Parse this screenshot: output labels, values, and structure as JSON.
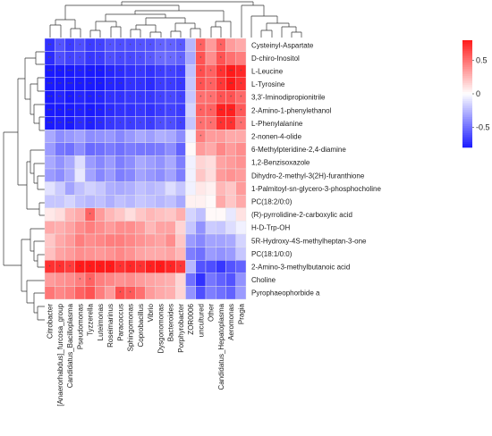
{
  "chart_data": {
    "type": "heatmap",
    "title": "",
    "xlabel": "",
    "ylabel": "",
    "rows": [
      "Cysteinyl-Aspartate",
      "D-chiro-Inositol",
      "L-Leucine",
      "L-Tyrosine",
      "3,3'-Iminodipropionitrile",
      "2-Amino-1-phenylethanol",
      "L-Phenylalanine",
      "2-nonen-4-olide",
      "6-Methylpteridine-2,4-diamine",
      "1,2-Benzisoxazole",
      "Dihydro-2-methyl-3(2H)-furanthione",
      "1-Palmitoyl-sn-glycero-3-phosphocholine",
      "PC(18:2/0:0)",
      "(R)-pyrrolidine-2-carboxylic acid",
      "H-D-Trp-OH",
      "5R-Hydroxy-4S-methylheptan-3-one",
      "PC(18:1/0:0)",
      "2-Amino-3-methylbutanoic acid",
      "Choline",
      "Pyrophaeophorbide a"
    ],
    "columns": [
      "Citrobacter",
      "[Anaerorhabdus]_furcosa_group",
      "Candidatus_Bacilloplasma",
      "Pseudomonas",
      "Tyzzerella",
      "Luteimonas",
      "Roseimarinus",
      "Paracoccus",
      "Sphingomonas",
      "Coprobacillus",
      "Vibrio",
      "Dysgonomonas",
      "Bacteroides",
      "Porphyrobacter",
      "ZOR0006",
      "uncultured",
      "Other",
      "Candidatus_Hepatoplasma",
      "Aeromonas",
      "Pragia"
    ],
    "values": [
      [
        -0.72,
        -0.6,
        -0.68,
        -0.62,
        -0.68,
        -0.66,
        -0.6,
        -0.62,
        -0.62,
        -0.6,
        -0.6,
        -0.55,
        -0.55,
        -0.58,
        -0.25,
        0.55,
        0.35,
        0.55,
        0.35,
        0.3
      ],
      [
        -0.74,
        -0.62,
        -0.66,
        -0.64,
        -0.7,
        -0.68,
        -0.62,
        -0.64,
        -0.64,
        -0.62,
        -0.58,
        -0.52,
        -0.52,
        -0.55,
        -0.3,
        0.6,
        0.4,
        0.6,
        0.5,
        0.45
      ],
      [
        -0.88,
        -0.82,
        -0.86,
        -0.78,
        -0.82,
        -0.8,
        -0.76,
        -0.74,
        -0.72,
        -0.7,
        -0.72,
        -0.68,
        -0.66,
        -0.68,
        -0.22,
        0.62,
        0.55,
        0.72,
        0.85,
        0.75
      ],
      [
        -0.88,
        -0.84,
        -0.86,
        -0.8,
        -0.84,
        -0.82,
        -0.76,
        -0.76,
        -0.72,
        -0.72,
        -0.74,
        -0.68,
        -0.68,
        -0.7,
        -0.2,
        0.6,
        0.55,
        0.7,
        0.82,
        0.72
      ],
      [
        -0.8,
        -0.76,
        -0.8,
        -0.76,
        -0.78,
        -0.76,
        -0.72,
        -0.72,
        -0.7,
        -0.7,
        -0.7,
        -0.66,
        -0.64,
        -0.66,
        -0.2,
        0.5,
        0.5,
        0.6,
        0.6,
        0.52
      ],
      [
        -0.86,
        -0.8,
        -0.84,
        -0.78,
        -0.8,
        -0.78,
        -0.74,
        -0.72,
        -0.72,
        -0.7,
        -0.72,
        -0.68,
        -0.66,
        -0.68,
        -0.15,
        0.55,
        0.55,
        0.78,
        0.78,
        0.58
      ],
      [
        -0.84,
        -0.78,
        -0.8,
        -0.74,
        -0.78,
        -0.74,
        -0.7,
        -0.68,
        -0.68,
        -0.66,
        -0.68,
        -0.62,
        -0.62,
        -0.66,
        -0.2,
        0.5,
        0.5,
        0.72,
        0.72,
        0.5
      ],
      [
        -0.3,
        -0.4,
        -0.36,
        -0.32,
        -0.4,
        -0.38,
        -0.36,
        -0.42,
        -0.36,
        -0.3,
        -0.34,
        -0.28,
        -0.3,
        -0.4,
        -0.05,
        0.45,
        0.35,
        0.35,
        0.3,
        0.3
      ],
      [
        -0.35,
        -0.48,
        -0.5,
        -0.4,
        -0.52,
        -0.5,
        -0.46,
        -0.5,
        -0.46,
        -0.48,
        -0.48,
        -0.46,
        -0.4,
        -0.55,
        0.02,
        0.35,
        0.3,
        0.42,
        0.35,
        0.4
      ],
      [
        -0.3,
        -0.38,
        -0.3,
        -0.12,
        -0.35,
        -0.42,
        -0.35,
        -0.45,
        -0.4,
        -0.3,
        -0.34,
        -0.38,
        -0.3,
        -0.45,
        -0.05,
        0.15,
        0.12,
        0.32,
        0.35,
        0.38
      ],
      [
        -0.35,
        -0.4,
        -0.3,
        -0.08,
        -0.32,
        -0.42,
        -0.35,
        -0.45,
        -0.42,
        -0.32,
        -0.36,
        -0.4,
        -0.32,
        -0.45,
        -0.05,
        0.2,
        0.12,
        0.35,
        0.38,
        0.35
      ],
      [
        -0.1,
        -0.18,
        -0.32,
        -0.22,
        -0.16,
        -0.2,
        -0.28,
        -0.3,
        -0.28,
        -0.22,
        -0.25,
        -0.22,
        -0.12,
        -0.2,
        -0.05,
        0.08,
        0.05,
        0.25,
        0.2,
        0.35
      ],
      [
        -0.2,
        -0.2,
        -0.15,
        -0.22,
        -0.25,
        -0.22,
        -0.28,
        -0.22,
        -0.25,
        -0.2,
        -0.22,
        -0.25,
        -0.22,
        -0.3,
        0.05,
        0.05,
        0.02,
        0.3,
        0.2,
        0.3
      ],
      [
        0.08,
        0.12,
        0.25,
        0.3,
        0.55,
        0.35,
        0.25,
        0.2,
        0.12,
        0.2,
        0.25,
        0.22,
        0.2,
        0.28,
        -0.15,
        -0.22,
        0.02,
        0.02,
        -0.08,
        0.1
      ],
      [
        0.3,
        0.28,
        0.32,
        0.4,
        0.45,
        0.4,
        0.35,
        0.4,
        0.4,
        0.35,
        0.25,
        0.32,
        0.32,
        0.15,
        -0.2,
        -0.38,
        -0.18,
        -0.2,
        -0.12,
        -0.05
      ],
      [
        0.2,
        0.3,
        0.35,
        0.45,
        0.4,
        0.42,
        0.45,
        0.45,
        0.42,
        0.38,
        0.35,
        0.32,
        0.4,
        0.2,
        -0.35,
        -0.42,
        -0.32,
        -0.32,
        -0.3,
        -0.15
      ],
      [
        0.22,
        0.32,
        0.35,
        0.4,
        0.38,
        0.36,
        0.38,
        0.42,
        0.38,
        0.32,
        0.3,
        0.3,
        0.32,
        0.25,
        -0.45,
        -0.5,
        -0.35,
        -0.38,
        -0.35,
        -0.2
      ],
      [
        0.72,
        0.72,
        0.68,
        0.8,
        0.85,
        0.85,
        0.82,
        0.72,
        0.75,
        0.72,
        0.78,
        0.82,
        0.76,
        0.7,
        -0.25,
        -0.6,
        -0.62,
        -0.7,
        -0.6,
        -0.55
      ],
      [
        0.35,
        0.38,
        0.4,
        0.45,
        0.55,
        0.45,
        0.42,
        0.38,
        0.4,
        0.35,
        0.32,
        0.3,
        0.28,
        0.15,
        -0.5,
        -0.72,
        -0.48,
        -0.55,
        -0.6,
        -0.38
      ],
      [
        0.48,
        0.42,
        0.45,
        0.55,
        0.6,
        0.45,
        0.35,
        0.62,
        0.58,
        0.5,
        0.35,
        0.3,
        0.28,
        0.15,
        -0.38,
        -0.62,
        -0.45,
        -0.5,
        -0.55,
        -0.35
      ]
    ],
    "significance": [
      [
        "**",
        "*",
        "*",
        "*",
        "*",
        "*",
        "*",
        "*",
        "*",
        "*",
        "*",
        "*",
        "*",
        "*",
        "",
        "*",
        "",
        "*",
        "",
        ""
      ],
      [
        "**",
        "*",
        "*",
        "*",
        "*",
        "*",
        "*",
        "*",
        "*",
        "*",
        "*",
        "*",
        "*",
        "*",
        "",
        "*",
        "",
        "*",
        "",
        ""
      ],
      [
        "***",
        "**",
        "***",
        "**",
        "**",
        "**",
        "**",
        "**",
        "*",
        "*",
        "*",
        "*",
        "*",
        "*",
        "",
        "*",
        "*",
        "*",
        "**",
        "*"
      ],
      [
        "***",
        "**",
        "***",
        "**",
        "**",
        "**",
        "**",
        "**",
        "*",
        "*",
        "*",
        "*",
        "*",
        "*",
        "",
        "*",
        "*",
        "*",
        "**",
        "*"
      ],
      [
        "***",
        "**",
        "**",
        "**",
        "**",
        "**",
        "*",
        "*",
        "*",
        "*",
        "*",
        "*",
        "*",
        "*",
        "",
        "*",
        "*",
        "*",
        "*",
        "*"
      ],
      [
        "***",
        "**",
        "***",
        "**",
        "**",
        "**",
        "**",
        "*",
        "*",
        "*",
        "*",
        "*",
        "*",
        "*",
        "",
        "*",
        "*",
        "**",
        "**",
        "*"
      ],
      [
        "***",
        "**",
        "***",
        "**",
        "**",
        "**",
        "*",
        "*",
        "*",
        "*",
        "*",
        "*",
        "*",
        "*",
        "",
        "*",
        "*",
        "*",
        "*",
        "*"
      ],
      [
        "",
        "",
        "",
        "",
        "",
        "",
        "",
        "",
        "",
        "",
        "",
        "",
        "",
        "",
        "",
        "*",
        "",
        "",
        "",
        ""
      ],
      [
        "",
        "",
        "",
        "",
        "",
        "",
        "",
        "",
        "",
        "",
        "",
        "",
        "",
        "",
        "",
        "",
        "",
        "",
        "",
        ""
      ],
      [
        "",
        "",
        "",
        "",
        "",
        "",
        "",
        "",
        "",
        "",
        "",
        "",
        "",
        "",
        "",
        "",
        "",
        "",
        "",
        ""
      ],
      [
        "",
        "",
        "",
        "",
        "",
        "",
        "",
        "",
        "",
        "",
        "",
        "",
        "",
        "",
        "",
        "",
        "",
        "",
        "",
        ""
      ],
      [
        "",
        "",
        "",
        "",
        "",
        "",
        "",
        "",
        "",
        "",
        "",
        "",
        "",
        "",
        "",
        "",
        "",
        "",
        "",
        ""
      ],
      [
        "",
        "",
        "",
        "",
        "",
        "",
        "",
        "",
        "",
        "",
        "",
        "",
        "",
        "",
        "",
        "",
        "",
        "",
        "",
        ""
      ],
      [
        "",
        "",
        "",
        "",
        "*",
        "",
        "",
        "",
        "",
        "",
        "",
        "",
        "",
        "",
        "",
        "",
        "",
        "",
        "",
        ""
      ],
      [
        "",
        "",
        "",
        "",
        "",
        "",
        "",
        "",
        "",
        "",
        "",
        "",
        "",
        "",
        "",
        "",
        "",
        "",
        "",
        ""
      ],
      [
        "",
        "",
        "",
        "",
        "",
        "",
        "",
        "",
        "",
        "",
        "",
        "",
        "",
        "",
        "",
        "",
        "",
        "",
        "",
        ""
      ],
      [
        "",
        "",
        "",
        "",
        "",
        "",
        "",
        "",
        "",
        "",
        "",
        "",
        "",
        "",
        "",
        "",
        "",
        "",
        "",
        ""
      ],
      [
        "*",
        "*",
        "*",
        "*",
        "*",
        "*",
        "*",
        "*",
        "*",
        "*",
        "*",
        "*",
        "*",
        "*",
        "",
        "",
        "",
        "",
        "",
        ""
      ],
      [
        "",
        "",
        "",
        "*",
        "*",
        "",
        "",
        "",
        "",
        "",
        "",
        "",
        "",
        "",
        "",
        "",
        "",
        "",
        "",
        ""
      ],
      [
        "",
        "",
        "",
        "",
        "",
        "",
        "",
        "*",
        "*",
        "",
        "",
        "",
        "",
        "",
        "",
        "",
        "",
        "",
        "",
        ""
      ]
    ],
    "color_scale": {
      "min": -0.8,
      "max": 0.8,
      "low_color": "#1a1aff",
      "mid_color": "#ffffff",
      "high_color": "#ff1a1a",
      "ticks": [
        "0.5",
        "0",
        "-0.5"
      ]
    },
    "legend_position": "top-right",
    "dendrograms": [
      "top",
      "left"
    ]
  }
}
